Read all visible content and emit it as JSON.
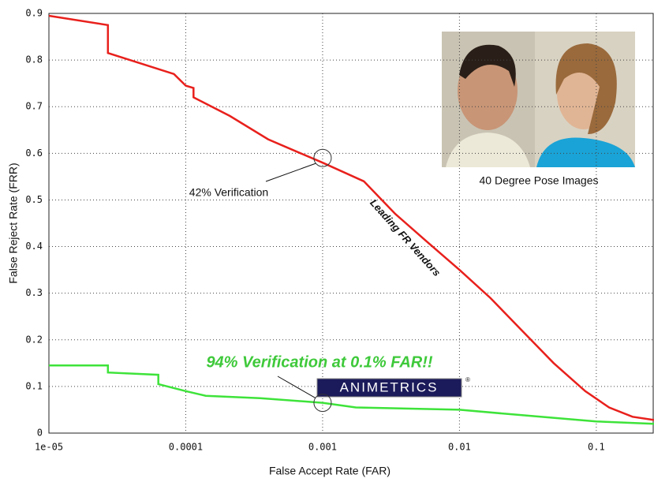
{
  "chart_data": {
    "type": "line",
    "xlabel": "False Accept Rate (FAR)",
    "ylabel": "False Reject Rate (FRR)",
    "xscale": "log",
    "xlim": [
      1e-05,
      0.264
    ],
    "ylim": [
      0,
      0.9
    ],
    "xticks": [
      {
        "value": 1e-05,
        "label": "1e-05"
      },
      0.0001,
      0.001,
      0.01,
      0.1
    ],
    "yticks": [
      0,
      0.1,
      0.2,
      0.3,
      0.4,
      0.5,
      0.6,
      0.7,
      0.8,
      0.9
    ],
    "grid": true,
    "series": [
      {
        "name": "Leading FR Vendors",
        "color": "#e8201c",
        "x": [
          1e-05,
          2.7e-05,
          2.7e-05,
          8.2e-05,
          0.0001,
          0.000114,
          0.000114,
          0.00021,
          0.0004,
          0.00069,
          0.001,
          0.002,
          0.0034,
          0.0058,
          0.01,
          0.0168,
          0.0286,
          0.0488,
          0.083,
          0.124,
          0.184,
          0.264
        ],
        "values": [
          0.895,
          0.875,
          0.815,
          0.77,
          0.745,
          0.74,
          0.72,
          0.68,
          0.63,
          0.6,
          0.58,
          0.54,
          0.47,
          0.41,
          0.35,
          0.29,
          0.22,
          0.15,
          0.09,
          0.055,
          0.035,
          0.028
        ]
      },
      {
        "name": "ANIMETRICS",
        "color": "#3ee33a",
        "x": [
          1e-05,
          2.7e-05,
          2.7e-05,
          6.3e-05,
          6.3e-05,
          0.0001,
          0.00014,
          0.00035,
          0.001,
          0.00175,
          0.01,
          0.025,
          0.1,
          0.264
        ],
        "values": [
          0.145,
          0.145,
          0.13,
          0.125,
          0.105,
          0.09,
          0.08,
          0.075,
          0.065,
          0.055,
          0.05,
          0.04,
          0.025,
          0.02
        ]
      }
    ],
    "annotations": [
      {
        "text": "42% Verification",
        "x": 0.001,
        "y": 0.59
      },
      {
        "text": "94% Verification at 0.1% FAR!!",
        "x": 0.001,
        "y": 0.065
      }
    ],
    "image_caption": "40 Degree Pose Images"
  }
}
